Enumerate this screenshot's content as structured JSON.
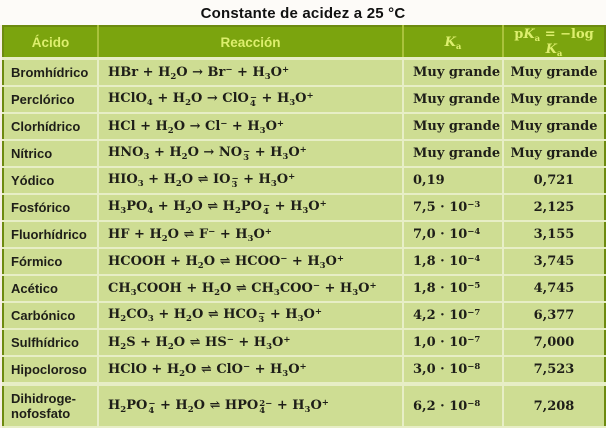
{
  "title": "Constante de acidez a 25 °C",
  "colors": {
    "header_bg": "#7ba40e",
    "header_text": "#ddef6e",
    "row_bg": "#cedd93",
    "grid_line": "#e7eec6",
    "table_border": "#6d8a10",
    "page_bg": "#f8efe7",
    "text": "#1e1e18"
  },
  "table": {
    "headers": [
      "Ácido",
      "Reacción",
      "*K*_a",
      "p*K*_a = −log *K*_a"
    ],
    "rows": [
      {
        "acid": "Bromhídrico",
        "reaction": "HBr + H_2O → Br^− + H_3O^+",
        "ka": "Muy grande",
        "pka": "Muy grande"
      },
      {
        "acid": "Perclórico",
        "reaction": "HClO_4 + H_2O → ClO_4^− + H_3O^+",
        "ka": "Muy grande",
        "pka": "Muy grande"
      },
      {
        "acid": "Clorhídrico",
        "reaction": "HCl + H_2O → Cl^− + H_3O^+",
        "ka": "Muy grande",
        "pka": "Muy grande"
      },
      {
        "acid": "Nítrico",
        "reaction": "HNO_3 + H_2O → NO_3^− + H_3O^+",
        "ka": "Muy grande",
        "pka": "Muy grande"
      },
      {
        "acid": "Yódico",
        "reaction": "HIO_3 + H_2O ⇌ IO_3^− + H_3O^+",
        "ka": "0,19",
        "pka": "0,721"
      },
      {
        "acid": "Fosfórico",
        "reaction": "H_3PO_4 + H_2O ⇌ H_2PO_4^− + H_3O^+",
        "ka": "7,5 · 10^{−3}",
        "pka": "2,125"
      },
      {
        "acid": "Fluorhídrico",
        "reaction": "HF + H_2O ⇌ F^− + H_3O^+",
        "ka": "7,0 · 10^{−4}",
        "pka": "3,155"
      },
      {
        "acid": "Fórmico",
        "reaction": "HCOOH + H_2O ⇌ HCOO^− + H_3O^+",
        "ka": "1,8 · 10^{−4}",
        "pka": "3,745"
      },
      {
        "acid": "Acético",
        "reaction": "CH_3COOH + H_2O ⇌ CH_3COO^− + H_3O^+",
        "ka": "1,8 · 10^{−5}",
        "pka": "4,745"
      },
      {
        "acid": "Carbónico",
        "reaction": "H_2CO_3 + H_2O ⇌ HCO_3^− + H_3O^+",
        "ka": "4,2 · 10^{−7}",
        "pka": "6,377"
      },
      {
        "acid": "Sulfhídrico",
        "reaction": "H_2S + H_2O ⇌ HS^− + H_3O^+",
        "ka": "1,0 · 10^{−7}",
        "pka": "7,000"
      },
      {
        "acid": "Hipocloroso",
        "reaction": "HClO + H_2O ⇌ ClO^− + H_3O^+",
        "ka": "3,0 · 10^{−8}",
        "pka": "7,523"
      },
      {
        "acid": "Dihidroge-\nnofosfato",
        "reaction": "H_2PO_4^− + H_2O ⇌ HPO_4^{2−} + H_3O^+",
        "ka": "6,2 · 10^{−8}",
        "pka": "7,208"
      }
    ]
  }
}
